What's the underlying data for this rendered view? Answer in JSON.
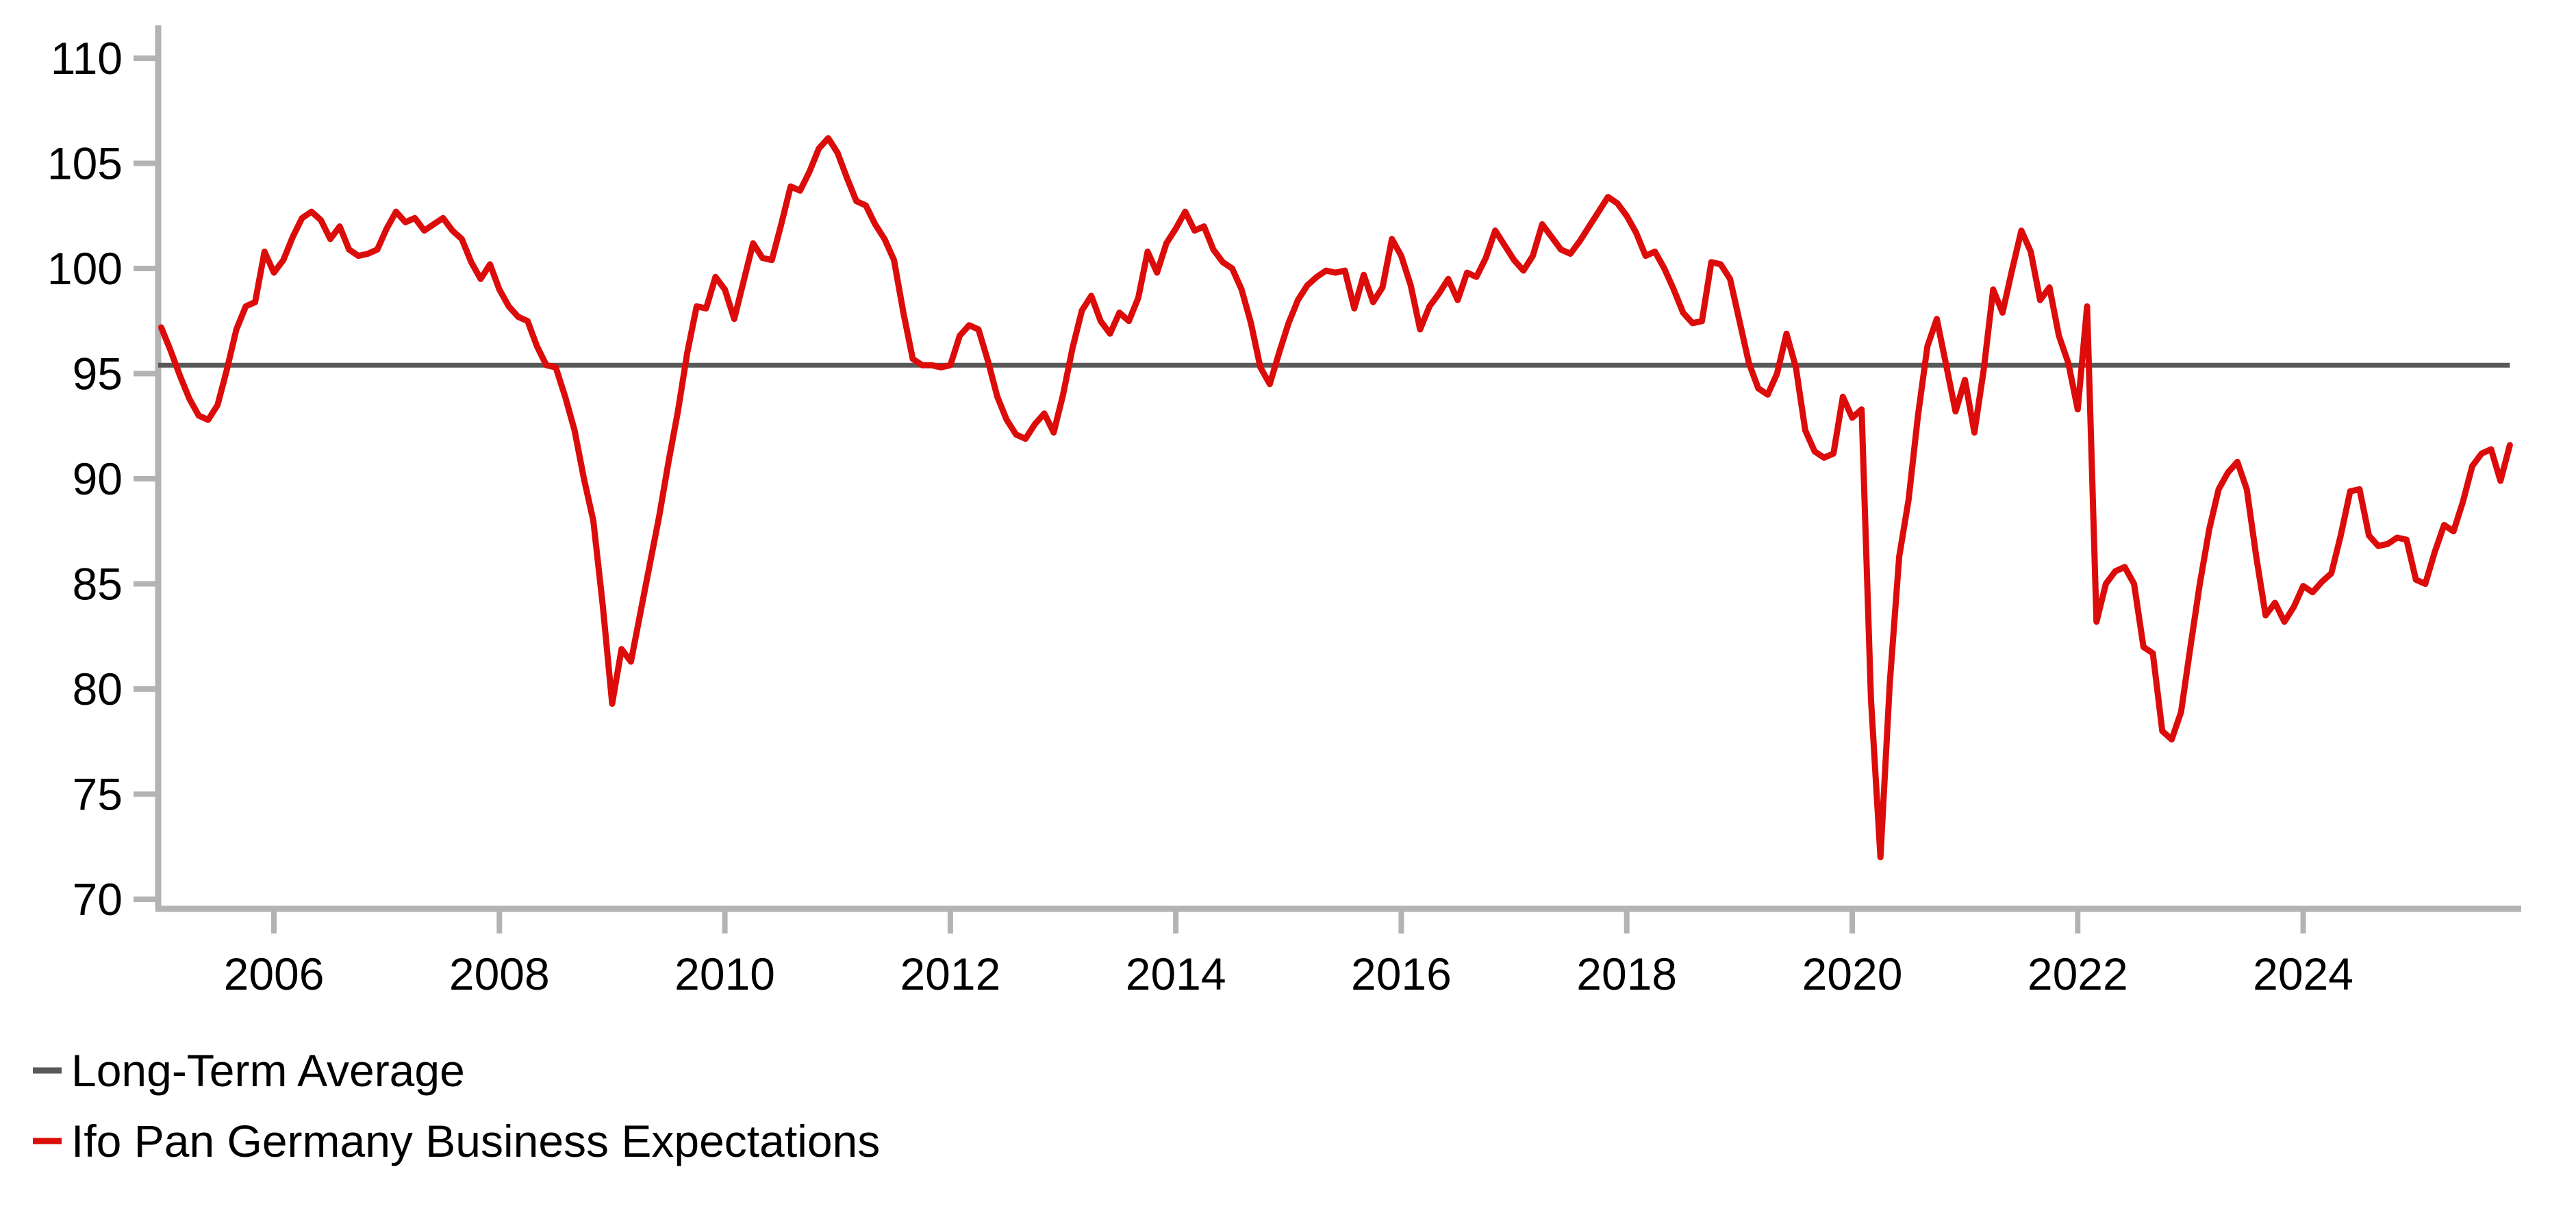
{
  "chart_data": {
    "type": "line",
    "title": "",
    "xlabel": "",
    "ylabel": "",
    "grid": false,
    "background_color": "#ffffff",
    "axis_color": "#b3b3b3",
    "text_color": "#000000",
    "x_axis": {
      "tick_labels": [
        "2006",
        "2008",
        "2010",
        "2012",
        "2014",
        "2016",
        "2018",
        "2020",
        "2022",
        "2024"
      ],
      "tick_years": [
        2006,
        2008,
        2010,
        2012,
        2014,
        2016,
        2018,
        2020,
        2022,
        2024
      ],
      "range_years": [
        2005.0,
        2026.1
      ]
    },
    "y_axis": {
      "tick_labels": [
        "110",
        "105",
        "100",
        "95",
        "90",
        "85",
        "80",
        "75",
        "70"
      ],
      "tick_values": [
        110,
        105,
        100,
        95,
        90,
        85,
        80,
        75,
        70
      ],
      "range": [
        68,
        112
      ]
    },
    "legend": {
      "position": "bottom-left",
      "items": [
        {
          "label": "Long-Term Average",
          "color": "#595959"
        },
        {
          "label": "Ifo Pan Germany Business Expectations",
          "color": "#dc0c0a"
        }
      ]
    },
    "series": [
      {
        "name": "Long-Term Average",
        "type": "constant-line",
        "color": "#595959",
        "value": 95.4
      },
      {
        "name": "Ifo Pan Germany Business Expectations",
        "type": "monthly-line",
        "color": "#dc0c0a",
        "start_year": 2005,
        "start_month": 1,
        "frequency": "monthly",
        "values": [
          97.2,
          96.1,
          94.9,
          93.8,
          93.0,
          92.8,
          93.5,
          95.2,
          97.1,
          98.2,
          98.4,
          100.8,
          99.8,
          100.4,
          101.5,
          102.4,
          102.7,
          102.3,
          101.4,
          102.0,
          100.9,
          100.6,
          100.7,
          100.9,
          101.9,
          102.7,
          102.2,
          102.4,
          101.8,
          102.1,
          102.4,
          101.8,
          101.4,
          100.3,
          99.5,
          100.2,
          99.0,
          98.2,
          97.7,
          97.5,
          96.3,
          95.4,
          95.3,
          93.9,
          92.3,
          90.0,
          88.0,
          84.0,
          79.3,
          81.9,
          81.3,
          83.6,
          85.9,
          88.2,
          90.8,
          93.2,
          96.0,
          98.2,
          98.1,
          99.6,
          99.0,
          97.6,
          99.4,
          101.2,
          100.5,
          100.4,
          102.1,
          103.9,
          103.7,
          104.6,
          105.7,
          106.2,
          105.5,
          104.3,
          103.2,
          103.0,
          102.1,
          101.4,
          100.4,
          97.9,
          95.7,
          95.4,
          95.4,
          95.3,
          95.4,
          96.8,
          97.3,
          97.1,
          95.6,
          93.9,
          92.8,
          92.1,
          91.9,
          92.6,
          93.1,
          92.2,
          94.0,
          96.2,
          98.0,
          98.7,
          97.5,
          96.9,
          97.9,
          97.5,
          98.6,
          100.8,
          99.8,
          101.2,
          101.9,
          102.7,
          101.8,
          102.0,
          100.9,
          100.3,
          100.0,
          99.0,
          97.4,
          95.3,
          94.5,
          96.0,
          97.4,
          98.5,
          99.2,
          99.6,
          99.9,
          99.8,
          99.9,
          98.1,
          99.7,
          98.4,
          99.1,
          101.4,
          100.6,
          99.2,
          97.1,
          98.2,
          98.8,
          99.5,
          98.5,
          99.8,
          99.6,
          100.5,
          101.8,
          101.1,
          100.4,
          99.9,
          100.6,
          102.1,
          101.5,
          100.9,
          100.7,
          101.3,
          102.0,
          102.7,
          103.4,
          103.1,
          102.5,
          101.7,
          100.6,
          100.8,
          100.0,
          99.0,
          97.9,
          97.4,
          97.5,
          100.3,
          100.2,
          99.5,
          97.5,
          95.5,
          94.3,
          94.0,
          95.0,
          96.9,
          95.3,
          92.3,
          91.3,
          91.0,
          91.2,
          93.9,
          92.9,
          93.3,
          79.5,
          72.0,
          80.3,
          86.3,
          89.0,
          93.0,
          96.3,
          97.6,
          95.4,
          93.2,
          94.7,
          92.2,
          95.2,
          99.0,
          97.9,
          99.9,
          101.8,
          100.8,
          98.5,
          99.1,
          96.8,
          95.5,
          93.3,
          98.2,
          83.2,
          85.0,
          85.6,
          85.8,
          85.0,
          82.0,
          81.7,
          78.0,
          77.6,
          78.9,
          82.0,
          85.0,
          87.6,
          89.5,
          90.3,
          90.8,
          89.5,
          86.3,
          83.5,
          84.1,
          83.2,
          83.9,
          84.9,
          84.6,
          85.1,
          85.5,
          87.3,
          89.4,
          89.5,
          87.3,
          86.8,
          86.9,
          87.2,
          87.1,
          85.2,
          85.0,
          86.5,
          87.8,
          87.5,
          88.9,
          90.6,
          91.2,
          91.4,
          89.9,
          91.6
        ]
      }
    ]
  }
}
